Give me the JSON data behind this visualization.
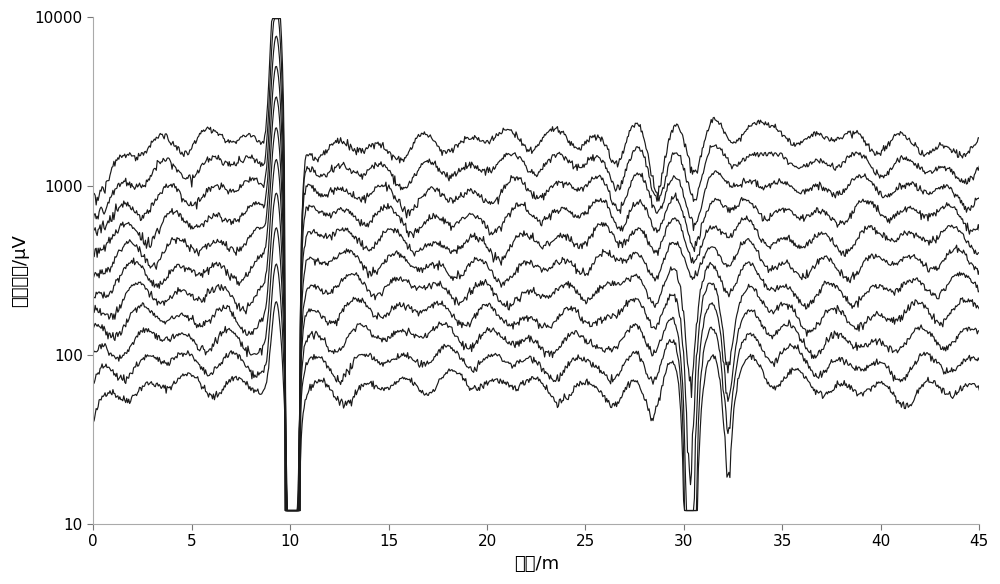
{
  "xlabel": "距离/m",
  "ylabel": "信号幅値/μV",
  "xlim": [
    0,
    45
  ],
  "ylim": [
    10,
    10000
  ],
  "background_color": "#ffffff",
  "line_color": "#1a1a1a",
  "line_width": 0.85,
  "n_curves": 11,
  "x_ticks": [
    0,
    5,
    10,
    15,
    20,
    25,
    30,
    35,
    40,
    45
  ],
  "y_ticks": [
    10,
    100,
    1000,
    10000
  ],
  "seed": 42
}
